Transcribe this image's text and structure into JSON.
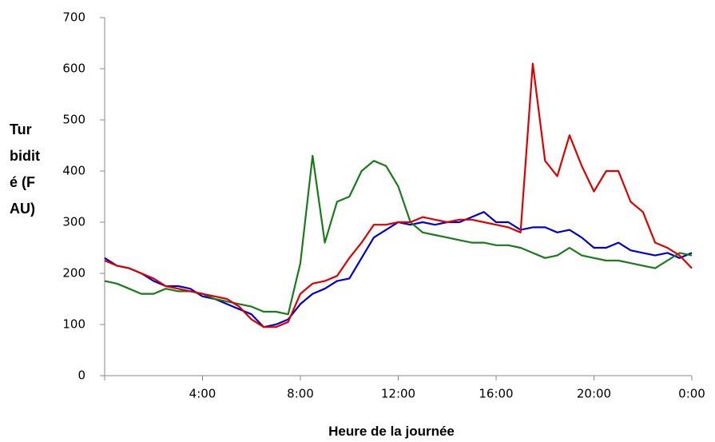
{
  "chart_data": {
    "type": "line",
    "xlabel": "Heure de la journée",
    "ylabel": "Turbidité (FAU)",
    "x": [
      0,
      0.5,
      1,
      1.5,
      2,
      2.5,
      3,
      3.5,
      4,
      4.5,
      5,
      5.5,
      6,
      6.5,
      7,
      7.5,
      8,
      8.5,
      9,
      9.5,
      10,
      10.5,
      11,
      11.5,
      12,
      12.5,
      13,
      13.5,
      14,
      14.5,
      15,
      15.5,
      16,
      16.5,
      17,
      17.5,
      18,
      18.5,
      19,
      19.5,
      20,
      20.5,
      21,
      21.5,
      22,
      22.5,
      23,
      23.5,
      24
    ],
    "series": [
      {
        "color": "#0000cc",
        "values": [
          230,
          215,
          210,
          200,
          185,
          175,
          175,
          170,
          155,
          150,
          140,
          130,
          120,
          95,
          100,
          110,
          140,
          160,
          170,
          185,
          190,
          230,
          270,
          285,
          300,
          295,
          300,
          295,
          300,
          300,
          310,
          320,
          300,
          300,
          285,
          290,
          290,
          280,
          285,
          270,
          250,
          250,
          260,
          245,
          240,
          235,
          240,
          230,
          240
        ]
      },
      {
        "color": "#dd0000",
        "values": [
          225,
          215,
          210,
          200,
          190,
          175,
          170,
          165,
          160,
          155,
          150,
          135,
          110,
          95,
          95,
          105,
          160,
          180,
          185,
          195,
          230,
          260,
          295,
          295,
          300,
          300,
          310,
          305,
          300,
          305,
          305,
          300,
          295,
          290,
          280,
          610,
          420,
          390,
          470,
          410,
          360,
          400,
          400,
          340,
          320,
          260,
          250,
          235,
          210
        ]
      },
      {
        "color": "#1a7a1a",
        "values": [
          185,
          180,
          170,
          160,
          160,
          170,
          165,
          165,
          160,
          150,
          145,
          140,
          135,
          125,
          125,
          120,
          220,
          430,
          260,
          340,
          350,
          400,
          420,
          410,
          370,
          300,
          280,
          275,
          270,
          265,
          260,
          260,
          255,
          255,
          250,
          240,
          230,
          235,
          250,
          235,
          230,
          225,
          225,
          220,
          215,
          210,
          225,
          240,
          235
        ]
      }
    ],
    "xlim": [
      0,
      24
    ],
    "xticks": [
      {
        "value": 4,
        "label": "4:00"
      },
      {
        "value": 8,
        "label": "8:00"
      },
      {
        "value": 12,
        "label": "12:00"
      },
      {
        "value": 16,
        "label": "16:00"
      },
      {
        "value": 20,
        "label": "20:00"
      },
      {
        "value": 24,
        "label": "0:00"
      }
    ],
    "ylim": [
      0,
      700
    ],
    "yticks": [
      0,
      100,
      200,
      300,
      400,
      500,
      600,
      700
    ]
  }
}
